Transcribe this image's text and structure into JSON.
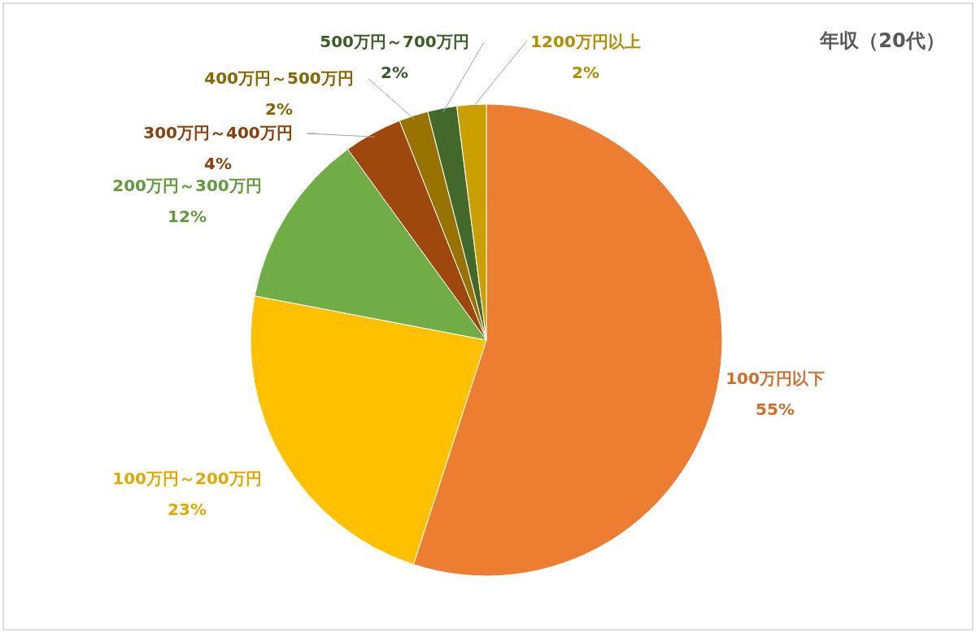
{
  "chart_data": {
    "type": "pie",
    "title": "年収（20代）",
    "categories": [
      "100万円以下",
      "100万円～200万円",
      "200万円～300万円",
      "300万円～400万円",
      "400万円～500万円",
      "500万円～700万円",
      "1200万円以上"
    ],
    "values": [
      55,
      23,
      12,
      4,
      2,
      2,
      2
    ],
    "value_labels": [
      "55%",
      "23%",
      "12%",
      "4%",
      "2%",
      "2%",
      "2%"
    ],
    "colors": [
      "#ed7d31",
      "#ffc000",
      "#70ad47",
      "#9e480e",
      "#997300",
      "#43682b",
      "#c9a000"
    ],
    "legend": false
  }
}
